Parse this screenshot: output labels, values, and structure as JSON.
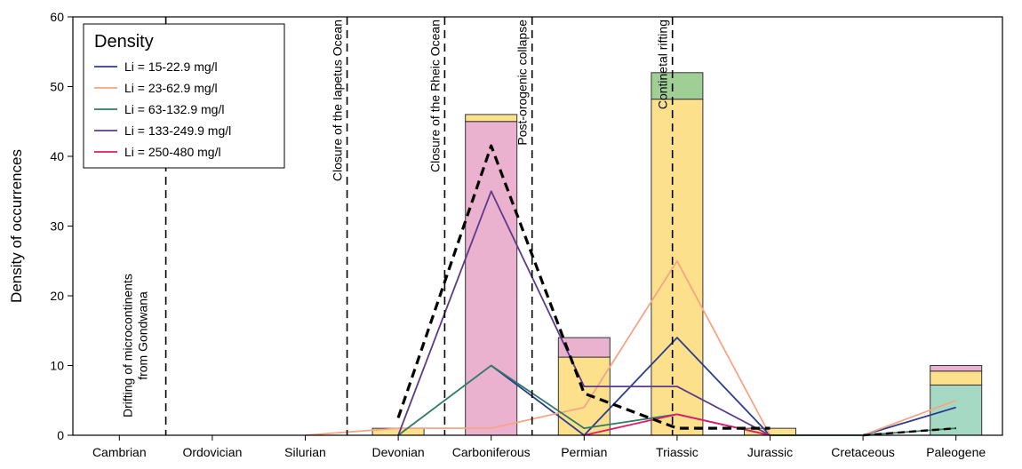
{
  "chart_data": {
    "type": "bar",
    "ylabel": "Density of occurrences",
    "xlabel": "",
    "ylim": [
      0,
      60
    ],
    "yticks": [
      0,
      10,
      20,
      30,
      40,
      50,
      60
    ],
    "categories": [
      "Cambrian",
      "Ordovician",
      "Silurian",
      "Devonian",
      "Carboniferous",
      "Permian",
      "Triassic",
      "Jurassic",
      "Cretaceous",
      "Paleogene"
    ],
    "stacked_bars": [
      {
        "category": "Devonian",
        "segments": [
          {
            "color": "#fde08c",
            "value": 1
          }
        ]
      },
      {
        "category": "Carboniferous",
        "segments": [
          {
            "color": "#ebb2cf",
            "value": 45
          },
          {
            "color": "#fde08c",
            "value": 1
          }
        ]
      },
      {
        "category": "Permian",
        "segments": [
          {
            "color": "#fde08c",
            "value": 11.2
          },
          {
            "color": "#ebb2cf",
            "value": 2.8
          }
        ]
      },
      {
        "category": "Triassic",
        "segments": [
          {
            "color": "#fde08c",
            "value": 48.2
          },
          {
            "color": "#9fcf94",
            "value": 3.8
          }
        ]
      },
      {
        "category": "Jurassic",
        "segments": [
          {
            "color": "#fde08c",
            "value": 1
          }
        ]
      },
      {
        "category": "Paleogene",
        "segments": [
          {
            "color": "#a6d9c4",
            "value": 7.2
          },
          {
            "color": "#fde08c",
            "value": 2
          },
          {
            "color": "#ebb2cf",
            "value": 0.8
          }
        ]
      }
    ],
    "line_series": [
      {
        "name": "Li = 15-22.9 mg/l",
        "color": "#2b3d8f",
        "points": [
          [
            "Carboniferous",
            10
          ],
          [
            "Permian",
            0
          ],
          [
            "Triassic",
            14
          ],
          [
            "Jurassic",
            0
          ],
          [
            "Cretaceous",
            0
          ],
          [
            "Paleogene",
            4
          ]
        ]
      },
      {
        "name": "Li = 23-62.9 mg/l",
        "color": "#f7a483",
        "points": [
          [
            "Silurian",
            0
          ],
          [
            "Devonian",
            1
          ],
          [
            "Carboniferous",
            1
          ],
          [
            "Permian",
            4
          ],
          [
            "Triassic",
            25
          ],
          [
            "Jurassic",
            0
          ],
          [
            "Cretaceous",
            0
          ],
          [
            "Paleogene",
            5
          ]
        ]
      },
      {
        "name": "Li = 63-132.9 mg/l",
        "color": "#2f7a66",
        "points": [
          [
            "Devonian",
            0
          ],
          [
            "Carboniferous",
            10
          ],
          [
            "Permian",
            1
          ],
          [
            "Triassic",
            3
          ],
          [
            "Jurassic",
            0
          ],
          [
            "Cretaceous",
            0
          ],
          [
            "Paleogene",
            1
          ]
        ]
      },
      {
        "name": "Li = 133-249.9 mg/l",
        "color": "#5b3b8c",
        "points": [
          [
            "Devonian",
            0
          ],
          [
            "Carboniferous",
            35
          ],
          [
            "Permian",
            7
          ],
          [
            "Triassic",
            7
          ],
          [
            "Jurassic",
            0
          ]
        ]
      },
      {
        "name": "Li = 250-480 mg/l",
        "color": "#e0196a",
        "points": [
          [
            "Permian",
            0
          ],
          [
            "Triassic",
            3
          ],
          [
            "Jurassic",
            0
          ]
        ]
      }
    ],
    "total_line": {
      "color": "#000000",
      "points": [
        [
          "Devonian",
          2.5
        ],
        [
          "Carboniferous",
          41.5
        ],
        [
          "Permian",
          6
        ],
        [
          "Triassic",
          1
        ],
        [
          "Jurassic",
          1
        ]
      ]
    },
    "total_line_tail": {
      "color": "#000000",
      "points": [
        [
          "Cretaceous",
          0
        ],
        [
          "Paleogene",
          1
        ]
      ]
    },
    "legend": {
      "title": "Density",
      "placement": "top-left",
      "items": [
        "Li = 15-22.9 mg/l",
        "Li = 23-62.9 mg/l",
        "Li = 63-132.9 mg/l",
        "Li = 133-249.9 mg/l",
        "Li = 250-480 mg/l"
      ]
    },
    "annotations": [
      {
        "at": 1.0,
        "text": "Drifting of microcontinents",
        "text2": "from Gondwana"
      },
      {
        "at": 2.95,
        "text": "Closure of the Iapetus Ocean"
      },
      {
        "at": 4.0,
        "text": "Closure of the Rheic Ocean"
      },
      {
        "at": 4.94,
        "text": "Post-orogenic collapse"
      },
      {
        "at": 6.45,
        "text": "Continetal rifting"
      }
    ]
  }
}
